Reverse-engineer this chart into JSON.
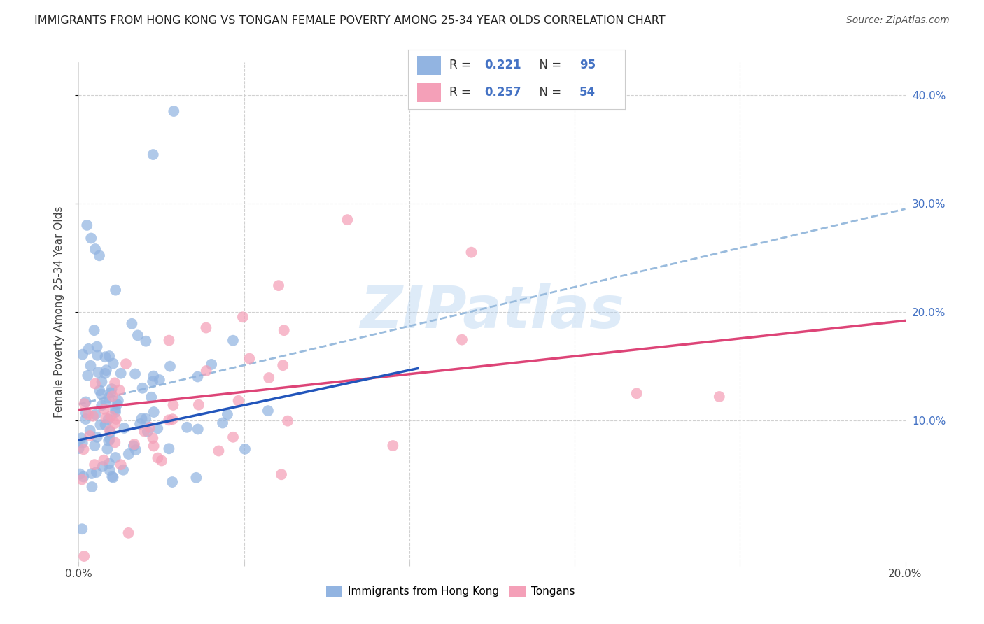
{
  "title": "IMMIGRANTS FROM HONG KONG VS TONGAN FEMALE POVERTY AMONG 25-34 YEAR OLDS CORRELATION CHART",
  "source": "Source: ZipAtlas.com",
  "ylabel": "Female Poverty Among 25-34 Year Olds",
  "xlabel": "",
  "xlim": [
    0.0,
    0.2
  ],
  "ylim": [
    -0.03,
    0.43
  ],
  "hk_color": "#92b4e1",
  "tongan_color": "#f4a0b8",
  "hk_line_color": "#2255bb",
  "tongan_line_color": "#dd4477",
  "hk_dash_color": "#99bbdd",
  "legend_R1": "0.221",
  "legend_N1": "95",
  "legend_R2": "0.257",
  "legend_N2": "54",
  "bottom_legend_1": "Immigrants from Hong Kong",
  "bottom_legend_2": "Tongans",
  "watermark": "ZIPatlas",
  "background_color": "#ffffff",
  "grid_color": "#cccccc",
  "hk_line_x0": 0.0,
  "hk_line_y0": 0.082,
  "hk_line_x1": 0.082,
  "hk_line_y1": 0.148,
  "dash_line_x0": 0.0,
  "dash_line_y0": 0.115,
  "dash_line_x1": 0.2,
  "dash_line_y1": 0.295,
  "tongan_line_x0": 0.0,
  "tongan_line_y0": 0.11,
  "tongan_line_x1": 0.2,
  "tongan_line_y1": 0.192
}
